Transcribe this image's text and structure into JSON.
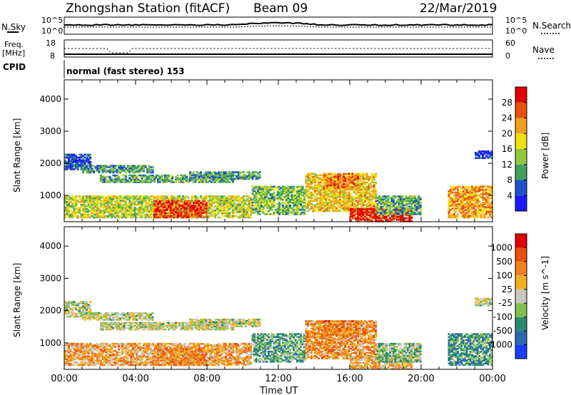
{
  "header": {
    "title": "Zhongshan Station (fitACF)",
    "beam": "Beam 09",
    "date": "22/Mar/2019"
  },
  "aux_panels": {
    "nsky_label": "N.Sky",
    "nsky_ticks": [
      "10^5",
      "10^0"
    ],
    "nsearch_label": "N.Search",
    "nsearch_ticks": [
      "10^5",
      "10^0"
    ],
    "freq_label_1": "Freq.",
    "freq_label_2": "[MHz]",
    "freq_ticks": [
      "18",
      "8"
    ],
    "nave_label": "Nave",
    "nave_ticks": [
      "60",
      "0"
    ],
    "cpid_label": "CPID",
    "cpid_text": "normal (fast stereo) 153"
  },
  "chart_data": [
    {
      "type": "heatmap",
      "parameter": "Power",
      "ylabel": "Slant Range [km]",
      "yticks": [
        1000,
        2000,
        3000,
        4000
      ],
      "ylim": [
        180,
        4600
      ],
      "xlim_hours": [
        0,
        24
      ],
      "colorbar_label": "Power [dB]",
      "colorbar_ticks": [
        "4",
        "8",
        "12",
        "16",
        "20",
        "24",
        "28"
      ],
      "colorbar_colors": [
        "#1a1aff",
        "#2050c8",
        "#40a060",
        "#90c840",
        "#f0e010",
        "#f0a020",
        "#e85010",
        "#e00000"
      ],
      "echo_regions": [
        {
          "t": [
            0.0,
            1.5
          ],
          "r": [
            1800,
            2300
          ],
          "level": 0.15
        },
        {
          "t": [
            1.0,
            5.0
          ],
          "r": [
            1700,
            1950
          ],
          "level": 0.3
        },
        {
          "t": [
            2.0,
            9.5
          ],
          "r": [
            1400,
            1650
          ],
          "level": 0.35
        },
        {
          "t": [
            7.0,
            11.0
          ],
          "r": [
            1500,
            1750
          ],
          "level": 0.3
        },
        {
          "t": [
            0.0,
            10.5
          ],
          "r": [
            300,
            1000
          ],
          "level": 0.5
        },
        {
          "t": [
            5.0,
            8.0
          ],
          "r": [
            300,
            850
          ],
          "level": 0.85
        },
        {
          "t": [
            10.5,
            13.5
          ],
          "r": [
            400,
            1300
          ],
          "level": 0.4
        },
        {
          "t": [
            13.5,
            17.5
          ],
          "r": [
            500,
            1700
          ],
          "level": 0.6
        },
        {
          "t": [
            14.5,
            16.5
          ],
          "r": [
            1200,
            1700
          ],
          "level": 0.75
        },
        {
          "t": [
            16.0,
            19.5
          ],
          "r": [
            180,
            600
          ],
          "level": 0.9
        },
        {
          "t": [
            17.5,
            20.0
          ],
          "r": [
            400,
            1000
          ],
          "level": 0.35
        },
        {
          "t": [
            21.5,
            24.0
          ],
          "r": [
            300,
            1300
          ],
          "level": 0.7
        },
        {
          "t": [
            23.0,
            24.0
          ],
          "r": [
            2150,
            2400
          ],
          "level": 0.1
        }
      ]
    },
    {
      "type": "heatmap",
      "parameter": "Velocity",
      "ylabel": "Slant Range [km]",
      "yticks": [
        1000,
        2000,
        3000,
        4000
      ],
      "ylim": [
        180,
        4600
      ],
      "xlim_hours": [
        0,
        24
      ],
      "xtick_labels": [
        "00:00",
        "04:00",
        "08:00",
        "12:00",
        "16:00",
        "20:00",
        "00:00"
      ],
      "xlabel": "Time UT",
      "colorbar_label": "Velocity [m s^-1]",
      "colorbar_ticks": [
        "1000",
        "500",
        "100",
        "25",
        "-25",
        "-100",
        "-500",
        "-1000"
      ],
      "colorbar_colors": [
        "#1a3cff",
        "#2a6ab0",
        "#2a8a70",
        "#80c050",
        "#c8c8c0",
        "#f0b020",
        "#f08020",
        "#e85010",
        "#e00000"
      ],
      "echo_regions": [
        {
          "t": [
            0.0,
            1.5
          ],
          "r": [
            1800,
            2300
          ],
          "level": 0.48
        },
        {
          "t": [
            1.0,
            5.0
          ],
          "r": [
            1700,
            1950
          ],
          "level": 0.48
        },
        {
          "t": [
            2.0,
            9.5
          ],
          "r": [
            1400,
            1650
          ],
          "level": 0.48
        },
        {
          "t": [
            7.0,
            11.0
          ],
          "r": [
            1500,
            1750
          ],
          "level": 0.48
        },
        {
          "t": [
            0.0,
            10.5
          ],
          "r": [
            300,
            1000
          ],
          "level": 0.65
        },
        {
          "t": [
            5.0,
            8.0
          ],
          "r": [
            300,
            850
          ],
          "level": 0.7
        },
        {
          "t": [
            10.5,
            13.5
          ],
          "r": [
            400,
            1300
          ],
          "level": 0.35
        },
        {
          "t": [
            13.5,
            17.5
          ],
          "r": [
            500,
            1700
          ],
          "level": 0.68
        },
        {
          "t": [
            14.5,
            16.5
          ],
          "r": [
            1200,
            1700
          ],
          "level": 0.72
        },
        {
          "t": [
            16.0,
            19.5
          ],
          "r": [
            180,
            600
          ],
          "level": 0.6
        },
        {
          "t": [
            17.5,
            20.0
          ],
          "r": [
            400,
            1000
          ],
          "level": 0.4
        },
        {
          "t": [
            21.5,
            24.0
          ],
          "r": [
            300,
            1300
          ],
          "level": 0.3
        },
        {
          "t": [
            23.0,
            24.0
          ],
          "r": [
            2150,
            2400
          ],
          "level": 0.48
        }
      ]
    }
  ]
}
